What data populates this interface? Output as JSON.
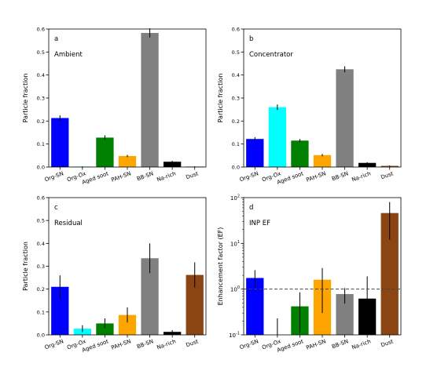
{
  "chart_data": [
    {
      "type": "bar",
      "panel_letter": "a",
      "panel_title": "Ambient",
      "ylabel": "Particle fraction",
      "categories": [
        "Org-SN",
        "Org-Ox",
        "Aged soot",
        "PAH-SN",
        "BB-SN",
        "Na-rich",
        "Dust"
      ],
      "values": [
        0.213,
        0.002,
        0.128,
        0.048,
        0.583,
        0.023,
        0.002
      ],
      "errors": [
        0.012,
        0.001,
        0.01,
        0.005,
        0.02,
        0.004,
        0.001
      ],
      "colors": [
        "#0000ff",
        "#00ffff",
        "#008000",
        "#ffa500",
        "#808080",
        "#000000",
        "#8b4513"
      ],
      "ylim": [
        0,
        0.6
      ],
      "yscale": "linear",
      "yticks": [
        "0.0",
        "0.1",
        "0.2",
        "0.3",
        "0.4",
        "0.5",
        "0.6"
      ],
      "ytick_values": [
        0,
        0.1,
        0.2,
        0.3,
        0.4,
        0.5,
        0.6
      ],
      "grid": false
    },
    {
      "type": "bar",
      "panel_letter": "b",
      "panel_title": "Concentrator",
      "ylabel": "Particle fraction",
      "categories": [
        "Org-SN",
        "Org-Ox",
        "Aged soot",
        "PAH-SN",
        "BB-SN",
        "Na-rich",
        "Dust"
      ],
      "values": [
        0.122,
        0.26,
        0.115,
        0.052,
        0.425,
        0.018,
        0.005
      ],
      "errors": [
        0.008,
        0.012,
        0.007,
        0.005,
        0.013,
        0.003,
        0.002
      ],
      "colors": [
        "#0000ff",
        "#00ffff",
        "#008000",
        "#ffa500",
        "#808080",
        "#000000",
        "#8b4513"
      ],
      "ylim": [
        0,
        0.6
      ],
      "yscale": "linear",
      "yticks": [
        "0.0",
        "0.1",
        "0.2",
        "0.3",
        "0.4",
        "0.5",
        "0.6"
      ],
      "ytick_values": [
        0,
        0.1,
        0.2,
        0.3,
        0.4,
        0.5,
        0.6
      ],
      "grid": false
    },
    {
      "type": "bar",
      "panel_letter": "c",
      "panel_title": "Residual",
      "ylabel": "Particle fraction",
      "categories": [
        "Org-SN",
        "Org-Ox",
        "Aged soot",
        "PAH-SN",
        "BB-SN",
        "Na-rich",
        "Dust"
      ],
      "values": [
        0.21,
        0.027,
        0.05,
        0.087,
        0.335,
        0.013,
        0.262
      ],
      "errors": [
        0.05,
        0.015,
        0.022,
        0.033,
        0.065,
        0.008,
        0.055
      ],
      "colors": [
        "#0000ff",
        "#00ffff",
        "#008000",
        "#ffa500",
        "#808080",
        "#000000",
        "#8b4513"
      ],
      "ylim": [
        0,
        0.6
      ],
      "yscale": "linear",
      "yticks": [
        "0.0",
        "0.1",
        "0.2",
        "0.3",
        "0.4",
        "0.5",
        "0.6"
      ],
      "ytick_values": [
        0,
        0.1,
        0.2,
        0.3,
        0.4,
        0.5,
        0.6
      ],
      "grid": false
    },
    {
      "type": "bar",
      "panel_letter": "d",
      "panel_title": "INP EF",
      "ylabel": "Enhancement factor (EF)",
      "categories": [
        "Org-SN",
        "Org-Ox",
        "Aged soot",
        "PAH-SN",
        "BB-SN",
        "Na-rich",
        "Dust"
      ],
      "values": [
        1.75,
        0.1,
        0.42,
        1.6,
        0.78,
        0.62,
        46
      ],
      "err_low": [
        1.0,
        0.1,
        0.11,
        0.3,
        0.48,
        0.1,
        12
      ],
      "err_high": [
        2.6,
        0.23,
        0.85,
        2.9,
        1.05,
        1.9,
        80
      ],
      "colors": [
        "#0000ff",
        "#00ffff",
        "#008000",
        "#ffa500",
        "#808080",
        "#000000",
        "#8b4513"
      ],
      "ylim": [
        0.1,
        100
      ],
      "yscale": "log",
      "yticks": [
        "10",
        "10",
        "10",
        "10"
      ],
      "ytick_exponents": [
        "-1",
        "0",
        "1",
        "2"
      ],
      "ytick_values": [
        0.1,
        1,
        10,
        100
      ],
      "reference_line": 1,
      "grid": false
    }
  ]
}
